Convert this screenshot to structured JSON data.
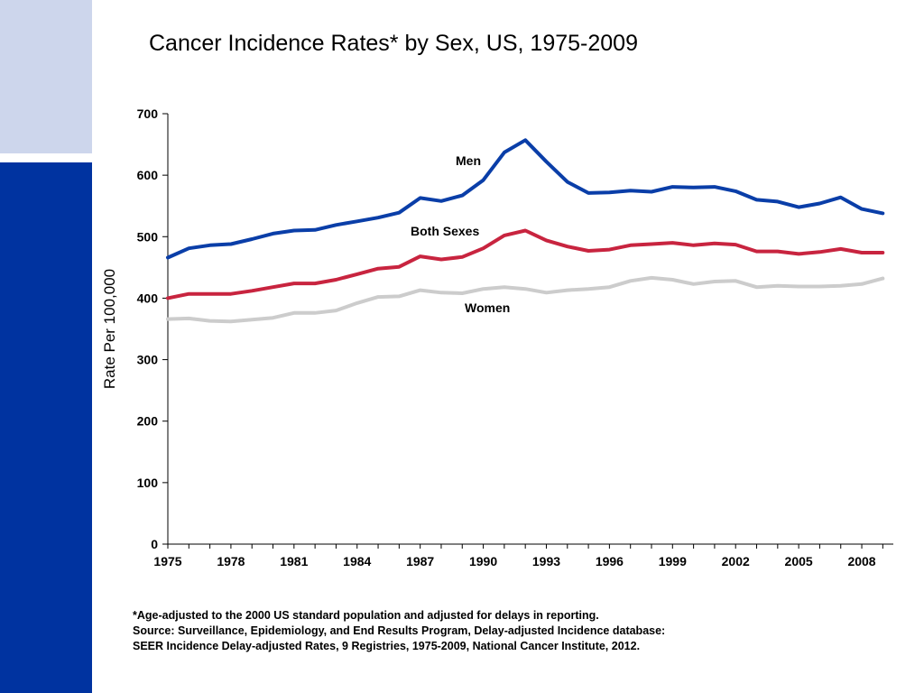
{
  "title": "Cancer Incidence Rates* by Sex, US, 1975-2009",
  "colors": {
    "men": "#0a3ea8",
    "both": "#c8243f",
    "women": "#cccccc",
    "sidebar_light": "#cdd6ec",
    "sidebar_dark": "#0033a0"
  },
  "chart_data": {
    "type": "line",
    "title": "Cancer Incidence Rates* by Sex, US, 1975-2009",
    "xlabel": "",
    "ylabel": "Rate Per 100,000",
    "ylim": [
      0,
      700
    ],
    "yticks": [
      0,
      100,
      200,
      300,
      400,
      500,
      600,
      700
    ],
    "xlim": [
      1975,
      2009
    ],
    "xtick_labels": [
      "1975",
      "1978",
      "1981",
      "1984",
      "1987",
      "1990",
      "1993",
      "1996",
      "1999",
      "2002",
      "2005",
      "2008"
    ],
    "x": [
      1975,
      1976,
      1977,
      1978,
      1979,
      1980,
      1981,
      1982,
      1983,
      1984,
      1985,
      1986,
      1987,
      1988,
      1989,
      1990,
      1991,
      1992,
      1993,
      1994,
      1995,
      1996,
      1997,
      1998,
      1999,
      2000,
      2001,
      2002,
      2003,
      2004,
      2005,
      2006,
      2007,
      2008,
      2009
    ],
    "grid": false,
    "legend": "inline labels",
    "series": [
      {
        "name": "Men",
        "values": [
          466,
          481,
          486,
          488,
          496,
          505,
          510,
          511,
          519,
          525,
          531,
          539,
          563,
          558,
          567,
          592,
          637,
          657,
          622,
          589,
          571,
          572,
          575,
          573,
          581,
          580,
          581,
          574,
          560,
          557,
          548,
          554,
          564,
          545,
          538
        ]
      },
      {
        "name": "Both Sexes",
        "values": [
          400,
          407,
          407,
          407,
          412,
          418,
          424,
          424,
          430,
          439,
          448,
          451,
          468,
          463,
          467,
          481,
          502,
          510,
          494,
          484,
          477,
          479,
          486,
          488,
          490,
          486,
          489,
          487,
          476,
          476,
          472,
          475,
          480,
          474,
          474
        ]
      },
      {
        "name": "Women",
        "values": [
          366,
          367,
          363,
          362,
          365,
          368,
          376,
          376,
          380,
          392,
          402,
          403,
          413,
          409,
          408,
          415,
          418,
          415,
          409,
          413,
          415,
          418,
          428,
          433,
          430,
          423,
          427,
          428,
          418,
          420,
          419,
          419,
          420,
          423,
          432
        ]
      }
    ]
  },
  "footnotes": [
    "*Age-adjusted to the 2000 US standard population and adjusted for delays in reporting.",
    "Source: Surveillance, Epidemiology, and End Results Program, Delay-adjusted Incidence database:",
    "SEER Incidence Delay-adjusted Rates, 9 Registries, 1975-2009, National Cancer Institute, 2012."
  ]
}
